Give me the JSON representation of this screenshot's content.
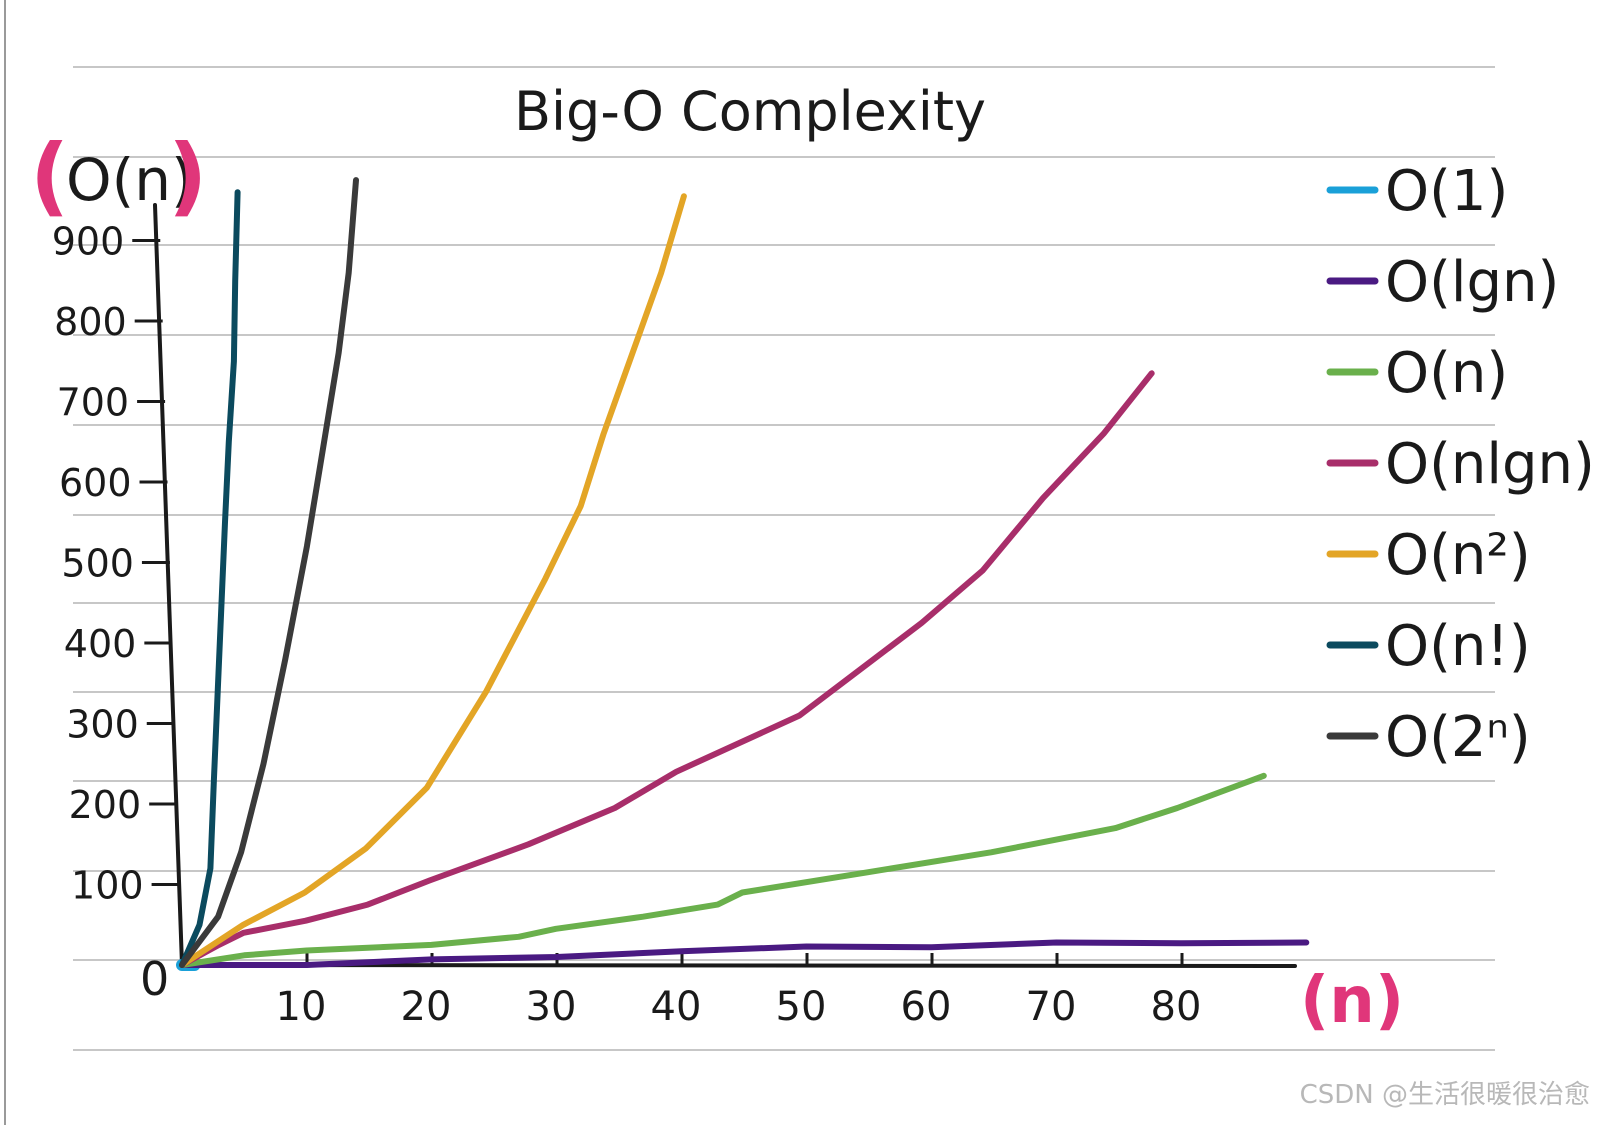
{
  "chart_data": {
    "type": "line",
    "title": "Big-O Complexity",
    "ylabel": "O(n)",
    "xlabel": "(n)",
    "origin_label": "0",
    "xlim": [
      0,
      90
    ],
    "ylim": [
      0,
      950
    ],
    "xticks": [
      10,
      20,
      30,
      40,
      50,
      60,
      70,
      80
    ],
    "yticks": [
      100,
      200,
      300,
      400,
      500,
      600,
      700,
      800,
      900
    ],
    "ytick_labels": [
      "100",
      "200",
      "300",
      "400",
      "500",
      "600",
      "700",
      "800",
      "900"
    ],
    "legend_position": "right",
    "series": [
      {
        "name": "O(1)",
        "color": "#1aa0d8",
        "x": [
          0,
          1
        ],
        "y": [
          0,
          0
        ]
      },
      {
        "name": "O(lgn)",
        "color": "#4a1a82",
        "x": [
          0,
          10,
          20,
          30,
          40,
          50,
          60,
          70,
          80,
          90
        ],
        "y": [
          0,
          0,
          7,
          10,
          17,
          23,
          22,
          28,
          27,
          28
        ]
      },
      {
        "name": "O(n)",
        "color": "#6ab04c",
        "x": [
          0,
          5,
          10,
          20,
          27,
          30,
          37,
          43,
          45,
          55,
          65,
          75,
          80,
          87
        ],
        "y": [
          0,
          12,
          18,
          25,
          35,
          45,
          60,
          75,
          90,
          115,
          140,
          170,
          195,
          235
        ]
      },
      {
        "name": "O(nlgn)",
        "color": "#a82e6a",
        "x": [
          0,
          3,
          5,
          10,
          15,
          20,
          28,
          35,
          40,
          50,
          60,
          65,
          70,
          75,
          79
        ],
        "y": [
          0,
          25,
          40,
          55,
          75,
          105,
          150,
          195,
          240,
          310,
          425,
          490,
          580,
          660,
          735
        ]
      },
      {
        "name": "O(n²)",
        "color": "#e3a526",
        "x": [
          0,
          5,
          10,
          15,
          20,
          25,
          30,
          33,
          35,
          38,
          40,
          42
        ],
        "y": [
          0,
          50,
          90,
          145,
          220,
          340,
          480,
          570,
          660,
          780,
          860,
          955
        ]
      },
      {
        "name": "O(n!)",
        "color": "#0b4a5e",
        "x": [
          0,
          1.5,
          2.5,
          3,
          3.8,
          4.5,
          5,
          5.6,
          5.9,
          6.3
        ],
        "y": [
          0,
          50,
          120,
          230,
          400,
          550,
          650,
          750,
          850,
          960
        ]
      },
      {
        "name": "O(2ⁿ)",
        "color": "#3a3a3a",
        "x": [
          0,
          3,
          5,
          7,
          9,
          11,
          12.5,
          14,
          15,
          15.8
        ],
        "y": [
          0,
          60,
          140,
          250,
          380,
          520,
          640,
          760,
          860,
          975
        ]
      }
    ]
  },
  "watermark": "CSDN @生活很暖很治愈"
}
